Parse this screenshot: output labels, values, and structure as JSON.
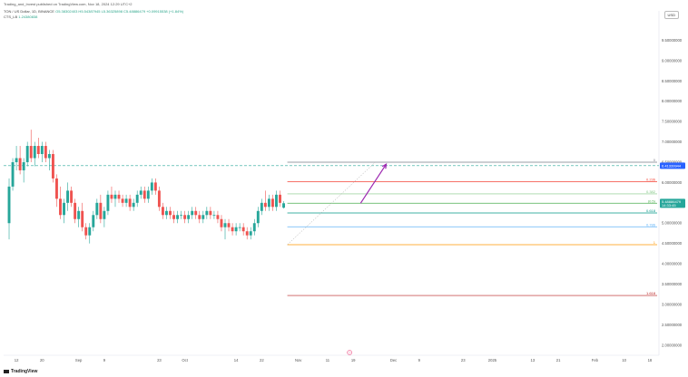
{
  "header": {
    "published_by": "Trading_and_Invest published on TradingView.com, Nov 18, 2024 12:29 UTC+2"
  },
  "legend": {
    "symbol": "TON / US Dollar, 1D, BINANCE",
    "ohlc": "O5.38302403  H5.54387945  L5.36325898  C5.48886479  +0.09915538 (+1.84%)",
    "indicator_label": "CTS_LB",
    "indicator_value": "1.24380838"
  },
  "currency_button": "USD",
  "brand": "TradingView",
  "colors": {
    "up": "#26a69a",
    "down": "#ef5350",
    "price_line": "#2962ff",
    "projection": "#9c27b0"
  },
  "chart_data": {
    "type": "candlestick",
    "ylim": [
      1.75,
      10.0
    ],
    "y_ticks": [
      {
        "v": 9.5,
        "label": "9.50000000"
      },
      {
        "v": 9.0,
        "label": "9.00000000"
      },
      {
        "v": 8.5,
        "label": "8.50000000"
      },
      {
        "v": 8.0,
        "label": "8.00000000"
      },
      {
        "v": 7.5,
        "label": "7.50000000"
      },
      {
        "v": 7.0,
        "label": "7.00000000"
      },
      {
        "v": 6.5,
        "label": "6.50000000"
      },
      {
        "v": 6.0,
        "label": "6.00000000"
      },
      {
        "v": 5.5,
        "label": "5.50000000"
      },
      {
        "v": 5.0,
        "label": "5.00000000"
      },
      {
        "v": 4.5,
        "label": "4.50000000"
      },
      {
        "v": 4.0,
        "label": "4.00000000"
      },
      {
        "v": 3.5,
        "label": "3.50000000"
      },
      {
        "v": 3.0,
        "label": "3.00000000"
      },
      {
        "v": 2.5,
        "label": "2.50000000"
      },
      {
        "v": 2.0,
        "label": "2.00000000"
      }
    ],
    "x_ticks": [
      {
        "i": 2,
        "label": "12"
      },
      {
        "i": 9,
        "label": "20"
      },
      {
        "i": 19,
        "label": "Sep"
      },
      {
        "i": 26,
        "label": "9"
      },
      {
        "i": 41,
        "label": "23"
      },
      {
        "i": 48,
        "label": "Oct"
      },
      {
        "i": 62,
        "label": "14"
      },
      {
        "i": 69,
        "label": "22"
      },
      {
        "i": 79,
        "label": "Nov"
      },
      {
        "i": 87,
        "label": "11"
      },
      {
        "i": 94,
        "label": "19"
      },
      {
        "i": 105,
        "label": "Dec"
      },
      {
        "i": 112,
        "label": "9"
      },
      {
        "i": 124,
        "label": "23"
      },
      {
        "i": 132,
        "label": "2025"
      },
      {
        "i": 143,
        "label": "13"
      },
      {
        "i": 150,
        "label": "21"
      },
      {
        "i": 160,
        "label": "Feb"
      },
      {
        "i": 168,
        "label": "10"
      },
      {
        "i": 175,
        "label": "18"
      }
    ],
    "x_count": 178,
    "candles": [
      [
        5.0,
        6.1,
        4.6,
        5.9
      ],
      [
        5.9,
        6.6,
        5.8,
        6.5
      ],
      [
        6.5,
        6.9,
        6.3,
        6.6
      ],
      [
        6.6,
        6.9,
        6.2,
        6.3
      ],
      [
        6.3,
        6.6,
        6.0,
        6.5
      ],
      [
        6.5,
        7.0,
        6.4,
        6.9
      ],
      [
        6.9,
        7.3,
        6.5,
        6.6
      ],
      [
        6.6,
        7.0,
        6.4,
        6.9
      ],
      [
        6.9,
        7.1,
        6.6,
        6.7
      ],
      [
        6.7,
        7.0,
        6.5,
        6.9
      ],
      [
        6.9,
        7.0,
        6.5,
        6.6
      ],
      [
        6.6,
        6.8,
        6.3,
        6.7
      ],
      [
        6.7,
        6.8,
        6.0,
        6.1
      ],
      [
        6.1,
        6.2,
        5.4,
        5.6
      ],
      [
        5.6,
        5.9,
        5.1,
        5.2
      ],
      [
        5.2,
        5.6,
        5.0,
        5.5
      ],
      [
        5.5,
        6.0,
        5.3,
        5.8
      ],
      [
        5.8,
        5.9,
        5.4,
        5.5
      ],
      [
        5.5,
        5.6,
        5.0,
        5.1
      ],
      [
        5.1,
        5.4,
        4.9,
        5.3
      ],
      [
        5.3,
        5.5,
        4.8,
        4.9
      ],
      [
        4.9,
        5.0,
        4.6,
        4.7
      ],
      [
        4.7,
        5.0,
        4.5,
        4.9
      ],
      [
        4.9,
        5.3,
        4.8,
        5.2
      ],
      [
        5.2,
        5.6,
        5.1,
        5.5
      ],
      [
        5.5,
        5.7,
        5.0,
        5.1
      ],
      [
        5.1,
        5.4,
        4.9,
        5.3
      ],
      [
        5.3,
        5.8,
        5.2,
        5.7
      ],
      [
        5.7,
        5.9,
        5.5,
        5.6
      ],
      [
        5.6,
        5.8,
        5.4,
        5.7
      ],
      [
        5.7,
        5.8,
        5.5,
        5.6
      ],
      [
        5.6,
        5.7,
        5.4,
        5.5
      ],
      [
        5.5,
        5.7,
        5.4,
        5.6
      ],
      [
        5.6,
        5.7,
        5.3,
        5.4
      ],
      [
        5.4,
        5.6,
        5.3,
        5.5
      ],
      [
        5.5,
        5.8,
        5.4,
        5.7
      ],
      [
        5.7,
        5.9,
        5.6,
        5.8
      ],
      [
        5.8,
        5.9,
        5.5,
        5.6
      ],
      [
        5.6,
        5.9,
        5.5,
        5.8
      ],
      [
        5.8,
        6.1,
        5.7,
        6.0
      ],
      [
        6.0,
        6.1,
        5.7,
        5.8
      ],
      [
        5.8,
        5.9,
        5.3,
        5.4
      ],
      [
        5.4,
        5.5,
        5.1,
        5.2
      ],
      [
        5.2,
        5.4,
        5.1,
        5.3
      ],
      [
        5.3,
        5.4,
        5.1,
        5.2
      ],
      [
        5.2,
        5.3,
        5.0,
        5.1
      ],
      [
        5.1,
        5.3,
        5.0,
        5.2
      ],
      [
        5.2,
        5.3,
        5.1,
        5.2
      ],
      [
        5.2,
        5.3,
        5.0,
        5.1
      ],
      [
        5.1,
        5.3,
        5.0,
        5.2
      ],
      [
        5.2,
        5.4,
        5.1,
        5.3
      ],
      [
        5.3,
        5.4,
        5.1,
        5.2
      ],
      [
        5.2,
        5.3,
        5.0,
        5.1
      ],
      [
        5.1,
        5.3,
        5.0,
        5.2
      ],
      [
        5.2,
        5.4,
        5.1,
        5.3
      ],
      [
        5.3,
        5.4,
        5.1,
        5.2
      ],
      [
        5.2,
        5.3,
        5.1,
        5.2
      ],
      [
        5.2,
        5.3,
        5.0,
        5.1
      ],
      [
        5.1,
        5.2,
        4.8,
        4.9
      ],
      [
        4.9,
        5.1,
        4.6,
        5.0
      ],
      [
        5.0,
        5.1,
        4.8,
        4.9
      ],
      [
        4.9,
        5.0,
        4.7,
        4.8
      ],
      [
        4.8,
        5.0,
        4.7,
        4.9
      ],
      [
        4.9,
        5.0,
        4.8,
        4.9
      ],
      [
        4.9,
        5.0,
        4.7,
        4.8
      ],
      [
        4.8,
        4.9,
        4.6,
        4.7
      ],
      [
        4.7,
        4.9,
        4.6,
        4.8
      ],
      [
        4.8,
        5.1,
        4.7,
        5.0
      ],
      [
        5.0,
        5.4,
        4.9,
        5.3
      ],
      [
        5.3,
        5.6,
        5.2,
        5.5
      ],
      [
        5.5,
        5.8,
        5.3,
        5.4
      ],
      [
        5.4,
        5.7,
        5.3,
        5.6
      ],
      [
        5.6,
        5.7,
        5.3,
        5.4
      ],
      [
        5.4,
        5.8,
        5.3,
        5.7
      ],
      [
        5.7,
        5.8,
        5.4,
        5.5
      ],
      [
        5.38,
        5.54,
        5.36,
        5.49
      ]
    ],
    "fib_levels": [
      {
        "ratio": "0",
        "label": "0",
        "value": 6.5,
        "color": "#787b86"
      },
      {
        "ratio": "0.236",
        "label": "0.236",
        "value": 6.02,
        "color": "#f44336"
      },
      {
        "ratio": "0.382",
        "label": "0.382",
        "value": 5.72,
        "color": "#81c784"
      },
      {
        "ratio": "0.5",
        "label": "(0.5)",
        "value": 5.49,
        "color": "#4caf50"
      },
      {
        "ratio": "0.618",
        "label": "0.618",
        "value": 5.25,
        "color": "#009688"
      },
      {
        "ratio": "0.786",
        "label": "0.786",
        "value": 4.91,
        "color": "#64b5f6"
      },
      {
        "ratio": "1",
        "label": "1",
        "value": 4.47,
        "color": "#ff9800"
      },
      {
        "ratio": "1.618",
        "label": "1.618",
        "value": 3.22,
        "color": "#b71c1c"
      }
    ],
    "current_price_label": "5.48886479",
    "current_price_time": "14:33:45",
    "current_price": 5.48886479,
    "dashed_level_label": "6.41339944",
    "dashed_level": 6.41339944,
    "projection_from": {
      "i": 96,
      "v": 5.49
    },
    "projection_to": {
      "i": 103,
      "v": 6.45
    }
  }
}
